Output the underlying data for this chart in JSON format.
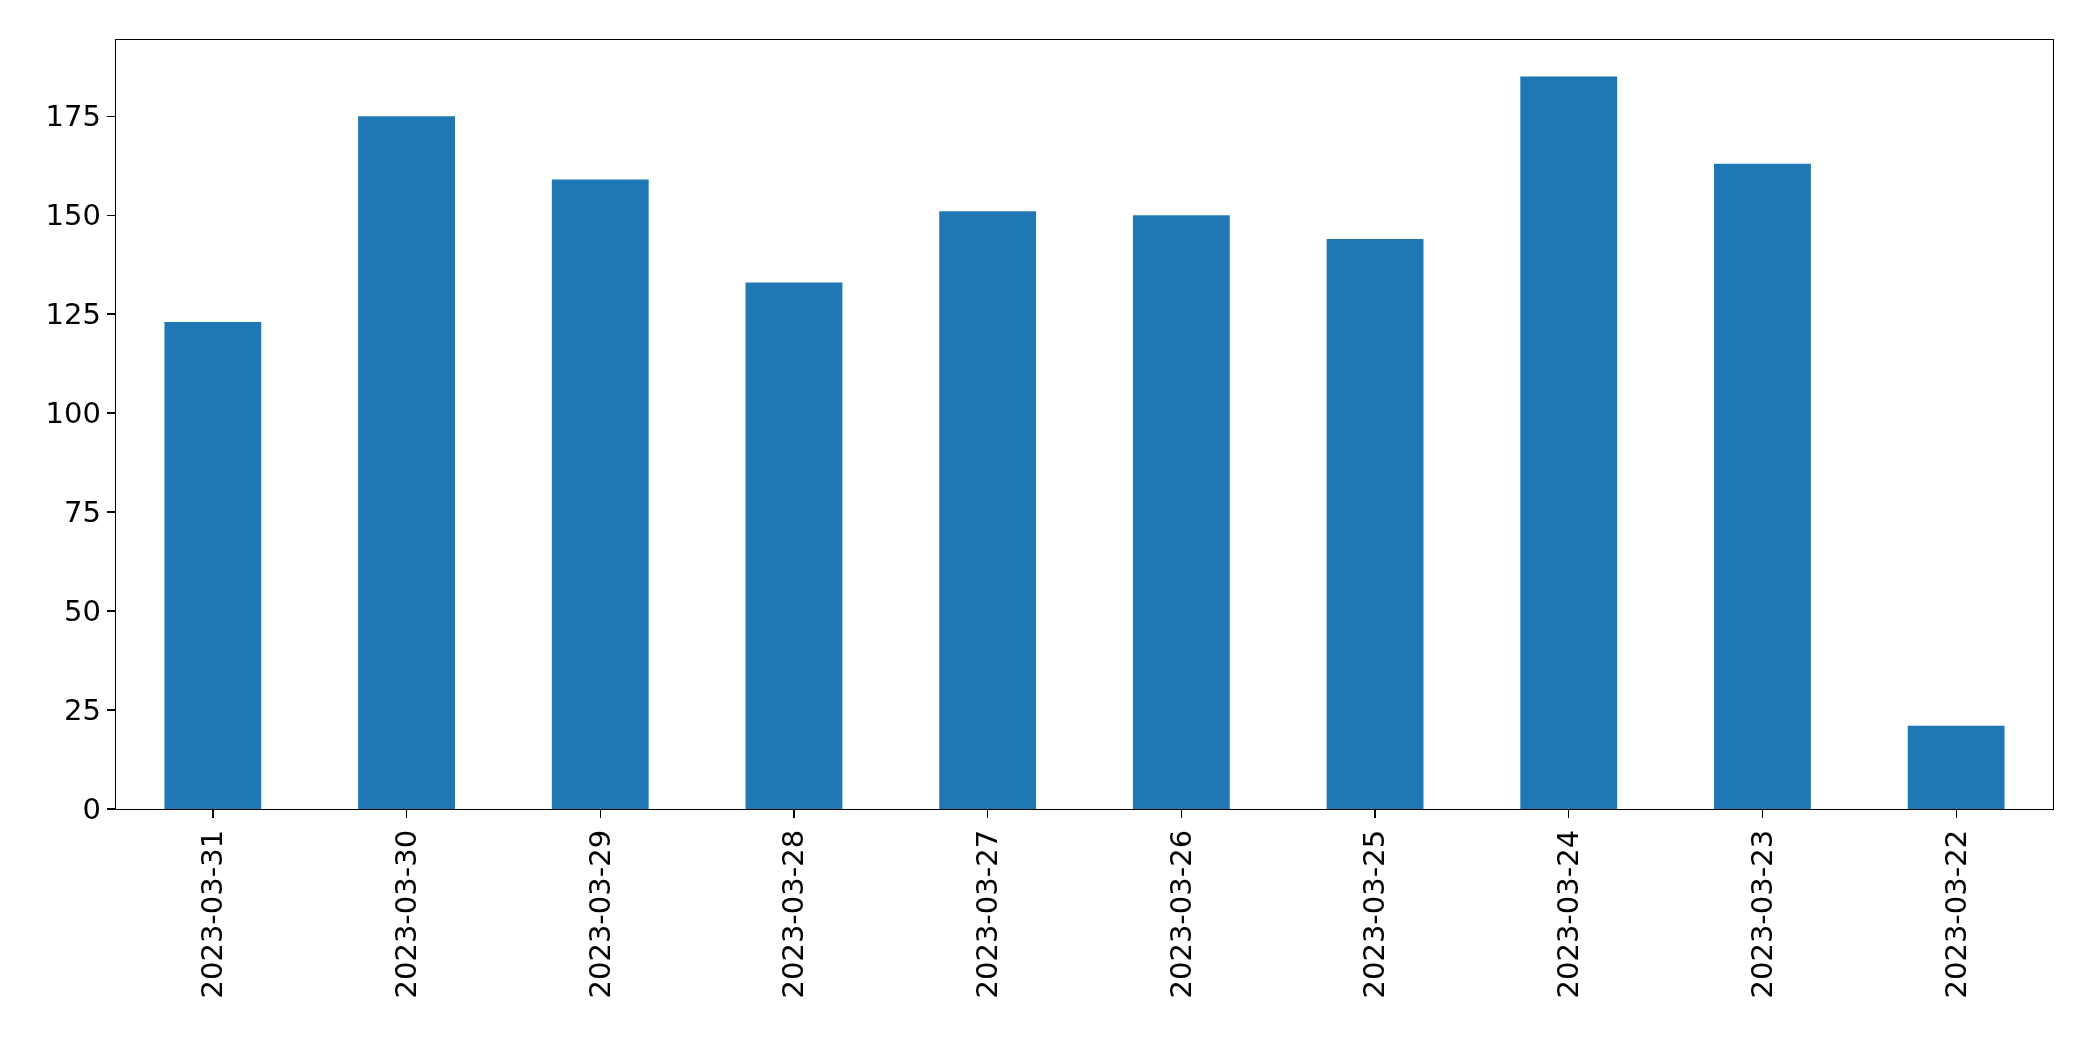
{
  "chart_data": {
    "type": "bar",
    "categories": [
      "2023-03-31",
      "2023-03-30",
      "2023-03-29",
      "2023-03-28",
      "2023-03-27",
      "2023-03-26",
      "2023-03-25",
      "2023-03-24",
      "2023-03-23",
      "2023-03-22"
    ],
    "values": [
      123,
      175,
      159,
      133,
      151,
      150,
      144,
      185,
      163,
      21
    ],
    "color": "#1f77b4",
    "ylim": [
      0,
      194.25
    ],
    "yticks": [
      0,
      25,
      50,
      75,
      100,
      125,
      150,
      175
    ],
    "grid": false,
    "legend": false
  }
}
